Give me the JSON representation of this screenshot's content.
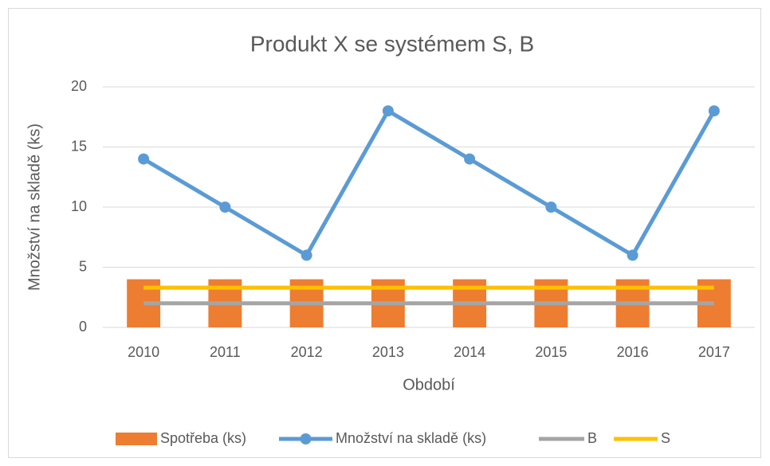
{
  "chart_data": {
    "type": "combo",
    "title": "Produkt X se systémem S, B",
    "x_label": "Období",
    "y_label": "Množství na skladě (ks)",
    "categories": [
      "2010",
      "2011",
      "2012",
      "2013",
      "2014",
      "2015",
      "2016",
      "2017"
    ],
    "series": [
      {
        "name": "Spotřeba (ks)",
        "type": "bar",
        "color": "#ed7d31",
        "values": [
          4,
          4,
          4,
          4,
          4,
          4,
          4,
          4
        ]
      },
      {
        "name": "Množství na skladě (ks)",
        "type": "line",
        "marker": true,
        "color": "#5b9bd5",
        "values": [
          14,
          10,
          6,
          18,
          14,
          10,
          6,
          18
        ]
      },
      {
        "name": "B",
        "type": "line",
        "color": "#a5a5a5",
        "values": [
          2,
          2,
          2,
          2,
          2,
          2,
          2,
          2
        ]
      },
      {
        "name": "S",
        "type": "line",
        "color": "#ffc000",
        "values": [
          3.3,
          3.3,
          3.3,
          3.3,
          3.3,
          3.3,
          3.3,
          3.3
        ]
      }
    ],
    "ylim": [
      0,
      20
    ],
    "yticks": [
      0,
      5,
      10,
      15,
      20
    ],
    "grid": true,
    "legend": "bottom"
  }
}
